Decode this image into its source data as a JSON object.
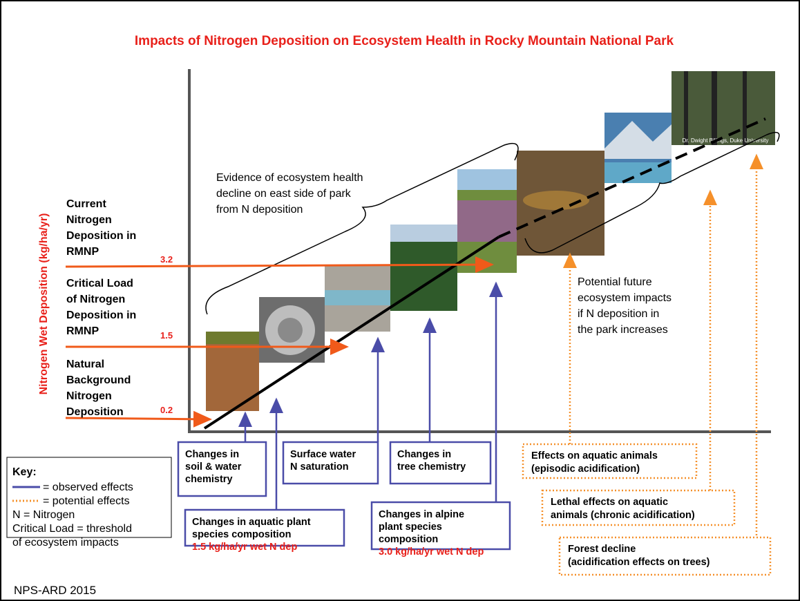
{
  "title": "Impacts of Nitrogen Deposition on Ecosystem Health in Rocky Mountain National Park",
  "y_axis_label": "Nitrogen Wet Deposition (kg/ha/yr)",
  "levels": [
    {
      "lines": [
        "Current",
        "Nitrogen",
        "Deposition in",
        "RMNP"
      ],
      "value": "3.2"
    },
    {
      "lines": [
        "Critical Load",
        "of  Nitrogen",
        "Deposition in",
        "RMNP"
      ],
      "value": "1.5"
    },
    {
      "lines": [
        "Natural",
        "Background",
        "Nitrogen",
        "Deposition"
      ],
      "value": "0.2"
    }
  ],
  "evidence_note": [
    "Evidence of ecosystem health",
    "decline on east side of park",
    "from N deposition"
  ],
  "future_note": [
    "Potential future",
    "ecosystem impacts",
    "if N deposition in",
    "the park increases"
  ],
  "photo_credit": "Dr. Dwight Billings, Duke University",
  "observed_effects": [
    {
      "lines": [
        "Changes in",
        "soil & water",
        "chemistry"
      ]
    },
    {
      "lines": [
        "Surface water",
        "N saturation"
      ]
    },
    {
      "lines": [
        "Changes in",
        "tree chemistry"
      ]
    },
    {
      "lines": [
        "Changes in aquatic plant",
        "species composition"
      ],
      "threshold": "1.5 kg/ha/yr wet N dep"
    },
    {
      "lines": [
        "Changes in alpine",
        "plant species",
        "composition"
      ],
      "threshold": "3.0 kg/ha/yr wet N dep"
    }
  ],
  "potential_effects": [
    {
      "lines": [
        "Effects on aquatic animals",
        "(episodic acidification)"
      ]
    },
    {
      "lines": [
        "Lethal effects on aquatic",
        "animals (chronic acidification)"
      ]
    },
    {
      "lines": [
        "Forest decline",
        "(acidification effects on trees)"
      ]
    }
  ],
  "key": {
    "title": "Key:",
    "observed": "= observed effects",
    "potential": "= potential effects",
    "lines": [
      "N = Nitrogen",
      "Critical Load = threshold",
      "of ecosystem impacts"
    ]
  },
  "footer": "NPS-ARD 2015"
}
